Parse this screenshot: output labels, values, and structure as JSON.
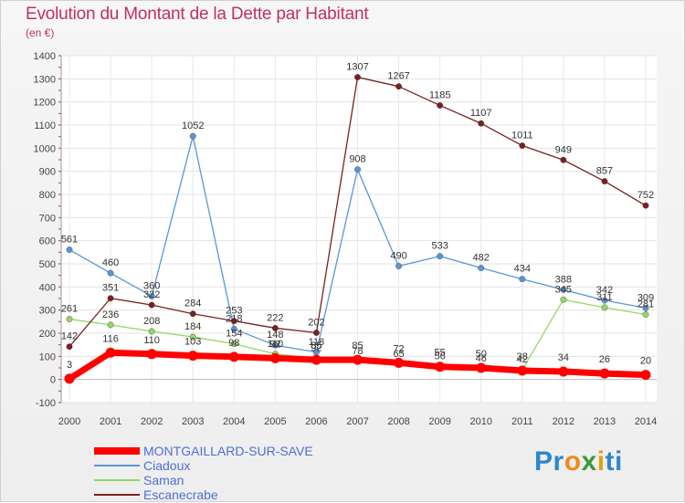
{
  "header": {
    "title": "Evolution du Montant de la Dette par Habitant",
    "unit": "(en €)"
  },
  "brand": {
    "parts": [
      "Pr",
      "o",
      "x",
      "i",
      "ti"
    ],
    "colors": [
      "#2f86c8",
      "#f08a1a",
      "#3a9a3a",
      "#e0a010",
      "#2f86c8"
    ]
  },
  "chart_data": {
    "type": "line",
    "title": "Evolution du Montant de la Dette par Habitant",
    "ylabel": "(en €)",
    "x": [
      "2000",
      "2001",
      "2002",
      "2003",
      "2004",
      "2005",
      "2006",
      "2007",
      "2008",
      "2009",
      "2010",
      "2011",
      "2012",
      "2013",
      "2014"
    ],
    "ylim": [
      -100,
      1400
    ],
    "yticks": [
      -100,
      0,
      100,
      200,
      300,
      400,
      500,
      600,
      700,
      800,
      900,
      1000,
      1100,
      1200,
      1300,
      1400
    ],
    "grid": true,
    "legend_position": "bottom-left",
    "series": [
      {
        "name": "Ciadoux",
        "color": "#5a95d8",
        "values": [
          561,
          460,
          360,
          1052,
          218,
          148,
          118,
          908,
          490,
          533,
          482,
          434,
          388,
          342,
          309
        ],
        "labels_visible": true
      },
      {
        "name": "Saman",
        "color": "#94d865",
        "values": [
          261,
          236,
          208,
          184,
          154,
          110,
          92,
          78,
          65,
          56,
          46,
          42,
          345,
          311,
          281
        ],
        "labels_visible": false
      },
      {
        "name": "Escanecrabe",
        "color": "#7a2020",
        "values": [
          142,
          351,
          322,
          284,
          253,
          222,
          202,
          1307,
          1267,
          1185,
          1107,
          1011,
          949,
          857,
          752
        ],
        "labels_visible": true
      },
      {
        "name": "MONTGAILLARD-SUR-SAVE",
        "color": "#ff0000",
        "values": [
          3,
          116,
          110,
          103,
          98,
          92,
          85,
          85,
          72,
          55,
          50,
          38,
          34,
          26,
          20
        ],
        "labels_visible": true
      }
    ],
    "extra_labels": [
      "98",
      "65",
      "53",
      "48",
      "43",
      "311",
      "281"
    ]
  }
}
